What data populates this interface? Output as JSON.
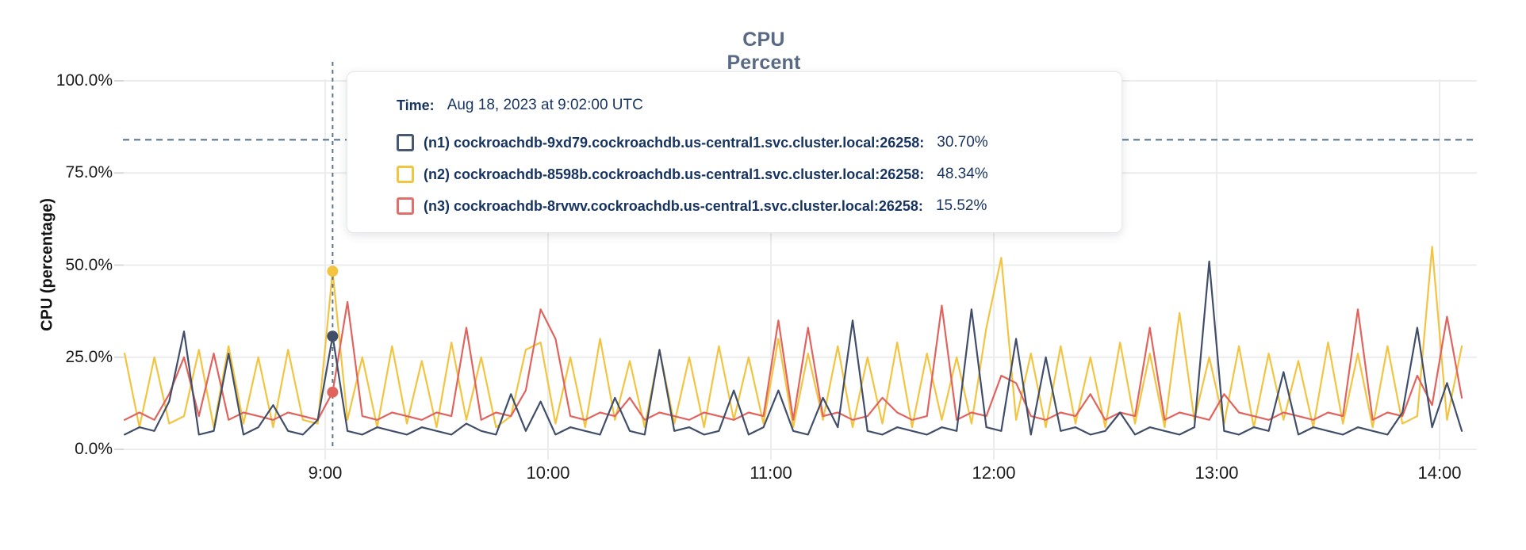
{
  "chart": {
    "title": "CPU Percent",
    "y_axis_label": "CPU (percentage)"
  },
  "tooltip": {
    "time_label": "Time:",
    "time_value": "Aug 18, 2023 at 9:02:00 UTC",
    "rows": [
      {
        "node": "n1",
        "label": "(n1) cockroachdb-9xd79.cockroachdb.us-central1.svc.cluster.local:26258:",
        "value": "30.70%",
        "color": "#475872"
      },
      {
        "node": "n2",
        "label": "(n2) cockroachdb-8598b.cockroachdb.us-central1.svc.cluster.local:26258:",
        "value": "48.34%",
        "color": "#efc63f"
      },
      {
        "node": "n3",
        "label": "(n3) cockroachdb-8rvwv.cockroachdb.us-central1.svc.cluster.local:26258:",
        "value": "15.52%",
        "color": "#e2706a"
      }
    ]
  },
  "colors": {
    "series_n1": "#404e69",
    "series_n2": "#f2c440",
    "series_n3": "#e0635e",
    "grid": "#ececec",
    "tick_mark": "#d8d8d8",
    "threshold_line": "#51708d",
    "crosshair": "#5d7589",
    "title_text": "#596a84",
    "tooltip_text": "#17335f"
  },
  "chart_data": {
    "type": "line",
    "title": "CPU Percent",
    "xlabel": "",
    "ylabel": "CPU (percentage)",
    "ylim": [
      0,
      100
    ],
    "grid": true,
    "x_unit": "minutes after 8:00 UTC",
    "x_start_min": 6,
    "x_step_min": 4,
    "y_ticks": [
      {
        "label": "0.0%",
        "value": 0
      },
      {
        "label": "25.0%",
        "value": 25
      },
      {
        "label": "50.0%",
        "value": 50
      },
      {
        "label": "75.0%",
        "value": 75
      },
      {
        "label": "100.0%",
        "value": 100
      }
    ],
    "x_ticks": [
      {
        "label": "9:00",
        "minute": 60
      },
      {
        "label": "10:00",
        "minute": 120
      },
      {
        "label": "11:00",
        "minute": 180
      },
      {
        "label": "12:00",
        "minute": 240
      },
      {
        "label": "13:00",
        "minute": 300
      },
      {
        "label": "14:00",
        "minute": 360
      }
    ],
    "threshold_pct": 84,
    "hover": {
      "time_min": 62,
      "time_label": "Aug 18, 2023 at 9:02:00 UTC",
      "points": [
        {
          "series": "n1",
          "value": 30.7
        },
        {
          "series": "n2",
          "value": 48.34
        },
        {
          "series": "n3",
          "value": 15.52
        }
      ]
    },
    "series": [
      {
        "name": "(n1) cockroachdb-9xd79.cockroachdb.us-central1.svc.cluster.local:26258",
        "key": "n1",
        "color": "#404e69",
        "values": [
          4,
          6,
          5,
          13,
          32,
          4,
          5,
          26,
          4,
          6,
          12,
          5,
          4,
          8,
          30.7,
          5,
          4,
          6,
          5,
          4,
          6,
          5,
          4,
          7,
          5,
          4,
          15,
          5,
          13,
          4,
          6,
          5,
          4,
          14,
          5,
          4,
          27,
          5,
          6,
          4,
          5,
          16,
          4,
          6,
          16,
          5,
          4,
          14,
          6,
          35,
          5,
          4,
          6,
          5,
          4,
          6,
          5,
          38,
          6,
          5,
          30,
          4,
          25,
          5,
          6,
          4,
          5,
          10,
          4,
          6,
          5,
          4,
          6,
          51,
          5,
          4,
          6,
          5,
          21,
          4,
          6,
          5,
          4,
          6,
          5,
          4,
          10,
          33,
          6,
          18,
          5
        ]
      },
      {
        "name": "(n2) cockroachdb-8598b.cockroachdb.us-central1.svc.cluster.local:26258",
        "key": "n2",
        "color": "#f2c440",
        "values": [
          26,
          6,
          25,
          7,
          9,
          27,
          6,
          28,
          7,
          25,
          6,
          27,
          8,
          7,
          48.34,
          8,
          25,
          6,
          28,
          7,
          24,
          6,
          29,
          8,
          25,
          6,
          9,
          27,
          29,
          7,
          25,
          6,
          30,
          8,
          24,
          6,
          27,
          7,
          25,
          6,
          28,
          8,
          25,
          7,
          30,
          6,
          26,
          8,
          28,
          6,
          25,
          7,
          29,
          6,
          26,
          8,
          25,
          7,
          33,
          52,
          8,
          26,
          6,
          28,
          7,
          25,
          6,
          29,
          7,
          26,
          6,
          37,
          8,
          25,
          7,
          28,
          6,
          26,
          8,
          24,
          6,
          29,
          7,
          26,
          6,
          28,
          7,
          9,
          55,
          8,
          28
        ]
      },
      {
        "name": "(n3) cockroachdb-8rvwv.cockroachdb.us-central1.svc.cluster.local:26258",
        "key": "n3",
        "color": "#e0635e",
        "values": [
          8,
          10,
          8,
          15,
          25,
          9,
          26,
          8,
          10,
          9,
          8,
          10,
          9,
          8,
          15.52,
          40,
          9,
          8,
          10,
          9,
          8,
          10,
          9,
          33,
          8,
          10,
          9,
          16,
          38,
          30,
          9,
          8,
          10,
          9,
          14,
          8,
          10,
          9,
          8,
          10,
          9,
          8,
          10,
          9,
          35,
          8,
          33,
          9,
          10,
          8,
          9,
          14,
          10,
          8,
          9,
          39,
          8,
          10,
          9,
          20,
          18,
          9,
          8,
          10,
          9,
          15,
          8,
          10,
          9,
          33,
          8,
          10,
          9,
          8,
          15,
          10,
          9,
          8,
          10,
          9,
          8,
          10,
          9,
          38,
          8,
          10,
          9,
          20,
          12,
          36,
          14
        ]
      }
    ]
  }
}
